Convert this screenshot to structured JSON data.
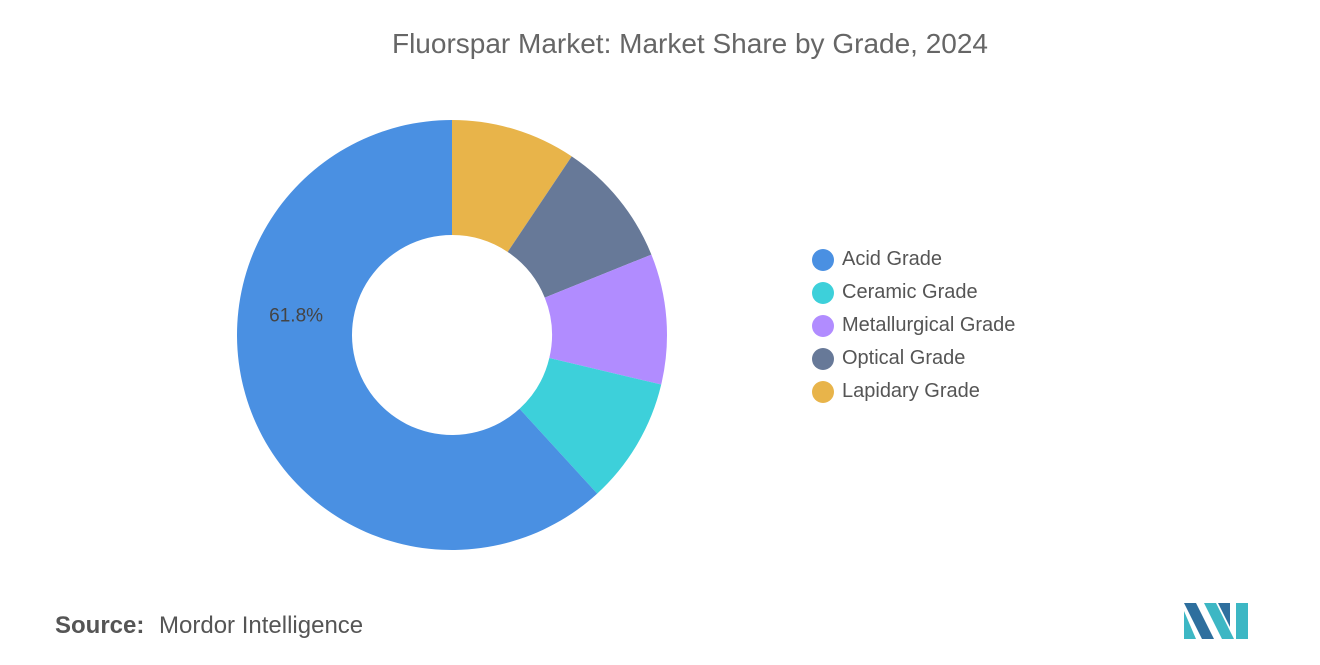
{
  "page": {
    "title": "Fluorspar Market: Market Share by Grade, 2024",
    "source_label": "Source:",
    "source_value": "Mordor Intelligence"
  },
  "chart_data": {
    "type": "pie",
    "variant": "donut",
    "title": "Fluorspar Market: Market Share by Grade, 2024",
    "legend_position": "right",
    "series": [
      {
        "name": "Acid Grade",
        "value": 61.8,
        "color": "#4A90E2",
        "label": "61.8%"
      },
      {
        "name": "Ceramic Grade",
        "value": 9.5,
        "color": "#3DD0DA",
        "label": ""
      },
      {
        "name": "Metallurgical Grade",
        "value": 9.8,
        "color": "#B18CFF",
        "label": ""
      },
      {
        "name": "Optical Grade",
        "value": 9.5,
        "color": "#677998",
        "label": ""
      },
      {
        "name": "Lapidary Grade",
        "value": 9.4,
        "color": "#E8B44A",
        "label": ""
      }
    ]
  },
  "logo": {
    "icon": "mordor-intelligence-logo-icon",
    "colors": [
      "#3DB7C4",
      "#2E6F9E"
    ]
  }
}
